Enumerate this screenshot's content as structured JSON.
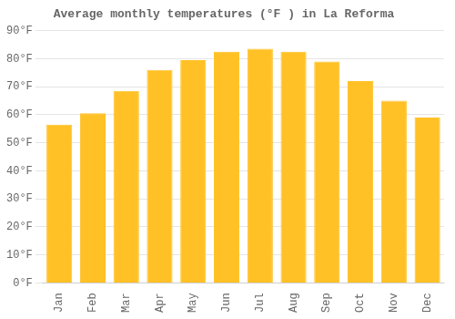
{
  "chart_data": {
    "type": "bar",
    "title": "Average monthly temperatures (°F ) in La Reforma",
    "categories": [
      "Jan",
      "Feb",
      "Mar",
      "Apr",
      "May",
      "Jun",
      "Jul",
      "Aug",
      "Sep",
      "Oct",
      "Nov",
      "Dec"
    ],
    "values": [
      56.5,
      60.5,
      68.5,
      76,
      79.5,
      82.5,
      83.5,
      82.5,
      79,
      72,
      65,
      59
    ],
    "color": "#FFC125",
    "ylim": [
      0,
      90
    ],
    "yticks": [
      {
        "value": 0,
        "label": "0°F"
      },
      {
        "value": 10,
        "label": "10°F"
      },
      {
        "value": 20,
        "label": "20°F"
      },
      {
        "value": 30,
        "label": "30°F"
      },
      {
        "value": 40,
        "label": "40°F"
      },
      {
        "value": 50,
        "label": "50°F"
      },
      {
        "value": 60,
        "label": "60°F"
      },
      {
        "value": 70,
        "label": "70°F"
      },
      {
        "value": 80,
        "label": "80°F"
      },
      {
        "value": 90,
        "label": "90°F"
      }
    ],
    "grid": true
  }
}
